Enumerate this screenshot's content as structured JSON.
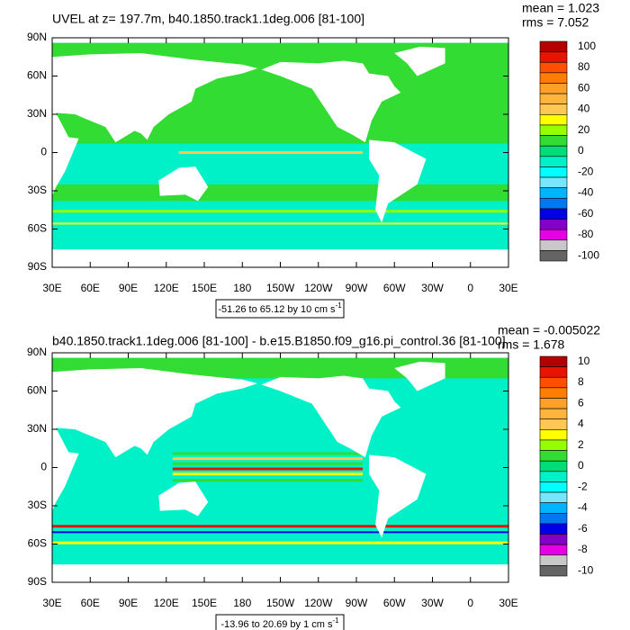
{
  "panels": [
    {
      "title": "UVEL at z= 197.7m, b40.1850.track1.1deg.006 [81-100]",
      "mean": "mean = 1.023",
      "rms": "rms = 7.052",
      "xticks": [
        "30E",
        "60E",
        "90E",
        "120E",
        "150E",
        "180",
        "150W",
        "120W",
        "90W",
        "60W",
        "30W",
        "0",
        "30E"
      ],
      "yticks": [
        "90N",
        "60N",
        "30N",
        "0",
        "30S",
        "60S",
        "90S"
      ],
      "colorbar": {
        "levels": [
          100,
          80,
          60,
          40,
          20,
          0,
          -20,
          -40,
          -60,
          -80,
          -100
        ],
        "colors": [
          "#b40000",
          "#e61400",
          "#ff5000",
          "#ff7d00",
          "#ffa028",
          "#ffb43c",
          "#ffc850",
          "#ffff00",
          "#96ff00",
          "#32dc32",
          "#00dc78",
          "#00f0c8",
          "#00ffff",
          "#78e6ff",
          "#00b4ff",
          "#0078f0",
          "#0000e6",
          "#8200c8",
          "#e600e6",
          "#c8c8c8",
          "#646464"
        ]
      },
      "range": "-51.26 to 65.12 by 10 cm s",
      "range_exp": "-1"
    },
    {
      "title": "b40.1850.track1.1deg.006 [81-100] - b.e15.B1850.f09_g16.pi_control.36 [81-100]",
      "mean": "mean = -0.005022",
      "rms": "rms = 1.678",
      "xticks": [
        "30E",
        "60E",
        "90E",
        "120E",
        "150E",
        "180",
        "150W",
        "120W",
        "90W",
        "60W",
        "30W",
        "0",
        "30E"
      ],
      "yticks": [
        "90N",
        "60N",
        "30N",
        "0",
        "30S",
        "60S",
        "90S"
      ],
      "colorbar": {
        "levels": [
          10,
          8,
          6,
          4,
          2,
          0,
          -2,
          -4,
          -6,
          -8,
          -10
        ],
        "colors": [
          "#b40000",
          "#e61400",
          "#ff5000",
          "#ff7d00",
          "#ffa028",
          "#ffb43c",
          "#ffc850",
          "#ffff00",
          "#96ff00",
          "#32dc32",
          "#00dc78",
          "#00f0c8",
          "#00ffff",
          "#78e6ff",
          "#00b4ff",
          "#0078f0",
          "#0000e6",
          "#8200c8",
          "#e600e6",
          "#c8c8c8",
          "#646464"
        ]
      },
      "range": "-13.96 to 20.69 by 1 cm s",
      "range_exp": "-1"
    }
  ]
}
